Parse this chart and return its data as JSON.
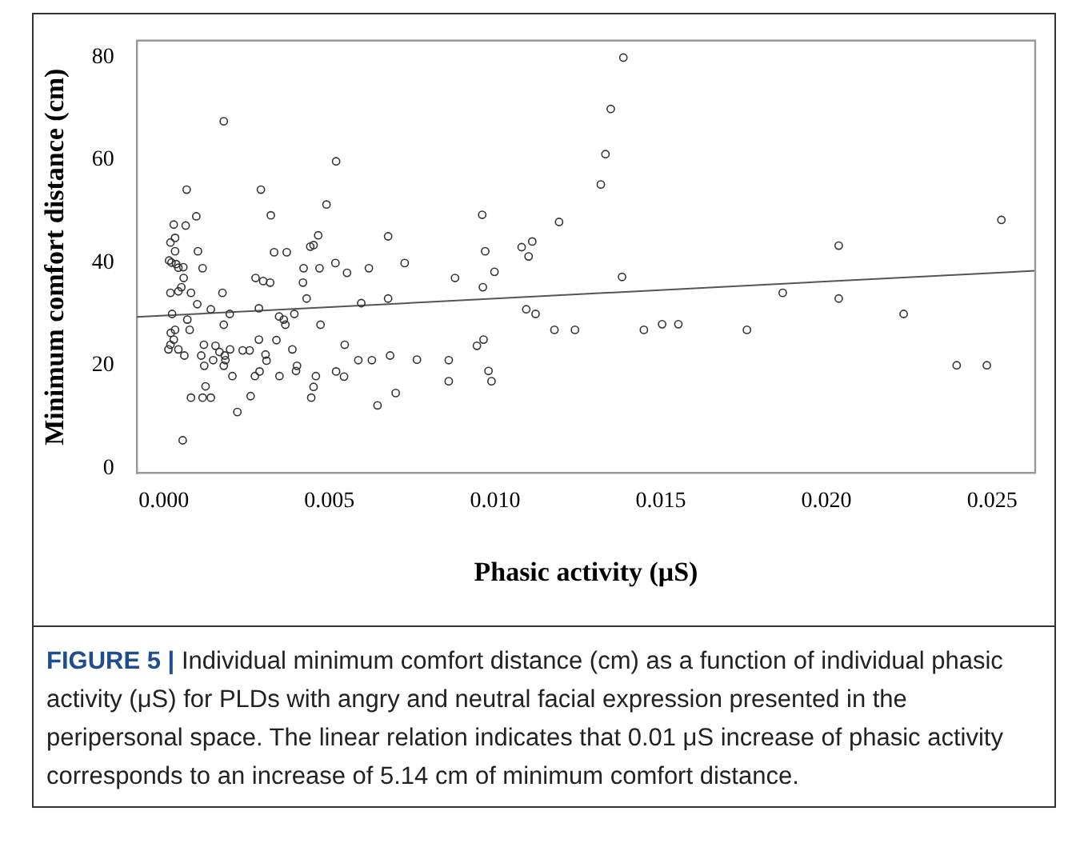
{
  "chart_data": {
    "type": "scatter",
    "xlabel": "Phasic activity (μS)",
    "ylabel": "Minimum comfort distance (cm)",
    "xlim": [
      -0.00082,
      0.0263
    ],
    "ylim": [
      -1,
      83.2
    ],
    "xticks": [
      {
        "value": 0,
        "label": "0.000"
      },
      {
        "value": 0.005,
        "label": "0.005"
      },
      {
        "value": 0.01,
        "label": "0.010"
      },
      {
        "value": 0.015,
        "label": "0.015"
      },
      {
        "value": 0.02,
        "label": "0.020"
      },
      {
        "value": 0.025,
        "label": "0.025"
      }
    ],
    "yticks": [
      0,
      20,
      40,
      60,
      80
    ],
    "grid": false,
    "legend": false,
    "series": [
      {
        "type": "scatter",
        "color": "#333333",
        "marker": "circle",
        "x": [
          0.00181,
          0.0052,
          0.00069,
          0.00293,
          0.00491,
          0.00098,
          0.0003,
          0.00066,
          0.00323,
          0.00466,
          0.00034,
          0.0002,
          0.00452,
          0.00442,
          0.00034,
          0.00103,
          0.00333,
          0.00371,
          0.00016,
          0.00023,
          0.00037,
          0.00044,
          0.00059,
          0.00117,
          0.00422,
          0.0047,
          0.00518,
          0.00553,
          0.00619,
          0.00677,
          0.0006,
          0.00277,
          0.003,
          0.00321,
          0.0042,
          0.0002,
          0.00044,
          0.00053,
          0.00082,
          0.00177,
          0.00431,
          0.00101,
          0.00142,
          0.00287,
          0.00596,
          0.00677,
          0.00025,
          0.00199,
          0.00348,
          0.00394,
          0.00071,
          0.00362,
          0.00078,
          0.00367,
          0.00181,
          0.00473,
          0.00021,
          0.00034,
          0.0003,
          0.00287,
          0.0034,
          0.0002,
          0.00014,
          0.00044,
          0.00121,
          0.00156,
          0.00062,
          0.00113,
          0.00168,
          0.00184,
          0.002,
          0.00238,
          0.00259,
          0.00307,
          0.00388,
          0.00546,
          0.00122,
          0.00149,
          0.00186,
          0.00181,
          0.0031,
          0.00402,
          0.00399,
          0.00587,
          0.00628,
          0.00683,
          0.00207,
          0.00275,
          0.00289,
          0.00349,
          0.00459,
          0.0052,
          0.00544,
          0.00126,
          0.00452,
          0.00082,
          0.00117,
          0.00142,
          0.00262,
          0.00445,
          0.00222,
          0.00645,
          0.00057,
          0.01387,
          0.01349,
          0.01333,
          0.01319,
          0.00961,
          0.01193,
          0.01112,
          0.0108,
          0.0097,
          0.01101,
          0.00727,
          0.00998,
          0.00879,
          0.01383,
          0.00963,
          0.01094,
          0.01122,
          0.01179,
          0.01241,
          0.01449,
          0.01504,
          0.01553,
          0.00965,
          0.00945,
          0.00764,
          0.0086,
          0.0098,
          0.0086,
          0.00989,
          0.007,
          0.02528,
          0.02037,
          0.01868,
          0.02037,
          0.02233,
          0.0176,
          0.02393,
          0.02484
        ],
        "values": [
          67.5,
          59.7,
          54.2,
          54.2,
          51.3,
          49.0,
          47.4,
          47.2,
          49.2,
          45.3,
          44.8,
          43.9,
          43.4,
          43.1,
          42.2,
          42.2,
          42.0,
          42.0,
          40.4,
          40.0,
          39.7,
          39.0,
          39.1,
          38.9,
          38.9,
          38.9,
          39.9,
          38.0,
          38.9,
          45.1,
          37.0,
          37.0,
          36.4,
          36.1,
          36.1,
          34.1,
          34.4,
          35.2,
          34.1,
          34.1,
          33.0,
          31.9,
          30.9,
          31.1,
          32.1,
          33.0,
          30.0,
          30.0,
          29.5,
          30.0,
          28.9,
          28.9,
          26.9,
          27.9,
          27.9,
          27.9,
          26.3,
          26.9,
          25.0,
          25.0,
          24.9,
          24.0,
          23.1,
          23.1,
          24.0,
          23.8,
          21.9,
          21.9,
          22.6,
          21.9,
          23.1,
          22.9,
          22.9,
          22.1,
          23.1,
          24.0,
          19.9,
          21.0,
          21.0,
          19.9,
          20.9,
          19.9,
          18.9,
          21.0,
          21.0,
          21.9,
          17.9,
          17.9,
          18.8,
          17.9,
          17.9,
          18.8,
          17.8,
          15.9,
          15.8,
          13.7,
          13.7,
          13.7,
          14.0,
          13.7,
          10.9,
          12.2,
          5.4,
          79.9,
          69.9,
          61.1,
          55.2,
          49.3,
          47.9,
          44.1,
          43.0,
          42.2,
          41.2,
          39.9,
          38.2,
          37.0,
          37.2,
          35.2,
          30.9,
          30.0,
          26.9,
          26.9,
          26.9,
          28.0,
          28.0,
          25.0,
          23.8,
          21.1,
          21.0,
          18.9,
          16.9,
          16.9,
          14.6,
          48.3,
          43.3,
          34.1,
          33.0,
          30.0,
          26.9,
          20.0,
          20.0
        ]
      },
      {
        "type": "line",
        "color": "#555555",
        "line_style": "solid",
        "x": [
          -0.00082,
          0.0263
        ],
        "values": [
          29.4,
          38.4
        ]
      }
    ],
    "annotations": [
      "FIGURE 5 |",
      "Individual minimum comfort distance (cm) as a function of individual phasic activity (μS) for PLDs with angry and neutral facial expression presented in the peripersonal space. The linear relation indicates that 0.01 μS increase of phasic activity corresponds to an increase of 5.14 cm of minimum comfort distance."
    ]
  }
}
